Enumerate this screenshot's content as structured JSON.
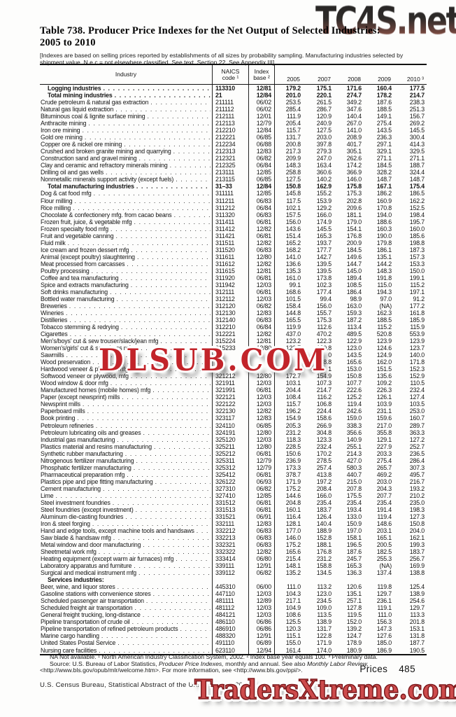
{
  "watermarks": {
    "top": "TC4S.net",
    "middle": "DLSUB.COM",
    "bottom": "TradersXtreme.com"
  },
  "title": {
    "line1": "Table 738. Producer Price Indexes for the Net Output of Selected Industries:",
    "line2": "2005 to 2010"
  },
  "note": "[Indexes are based on selling prices reported by establishments of all sizes by probability sampling. Manufacturing industries selected by shipment value. N.e.c.= not elsewhere classified. See text, Section 22. See Appendix III]",
  "table": {
    "header": {
      "industry": "Industry",
      "naics1": "NAICS",
      "naics2": "code ¹",
      "base1": "Index",
      "base2": "base ²",
      "years": [
        "2005",
        "2007",
        "2008",
        "2009",
        "2010 ³"
      ]
    },
    "rows": [
      {
        "n": "Logging industries",
        "c": "113310",
        "b": "12/81",
        "v": [
          "179.2",
          "175.1",
          "171.6",
          "160.4",
          "177.5"
        ],
        "s": "b"
      },
      {
        "n": "Total mining industries",
        "c": "21",
        "b": "12/84",
        "v": [
          "201.0",
          "220.1",
          "274.7",
          "178.2",
          "214.7"
        ],
        "s": "b"
      },
      {
        "n": "Crude petroleum & natural gas extraction",
        "c": "211111",
        "b": "06/02",
        "v": [
          "253.5",
          "261.5",
          "349.2",
          "187.6",
          "238.3"
        ]
      },
      {
        "n": "Natural gas liquid extraction",
        "c": "211112",
        "b": "06/02",
        "v": [
          "285.4",
          "286.7",
          "347.6",
          "188.5",
          "251.3"
        ]
      },
      {
        "n": "Bituminous coal & lignite surface mining",
        "c": "212111",
        "b": "12/01",
        "v": [
          "111.9",
          "120.9",
          "140.4",
          "149.1",
          "156.7"
        ]
      },
      {
        "n": "Anthracite mining",
        "c": "212113",
        "b": "12/79",
        "v": [
          "205.4",
          "240.9",
          "267.0",
          "275.4",
          "269.2"
        ]
      },
      {
        "n": "Iron ore mining",
        "c": "212210",
        "b": "12/84",
        "v": [
          "115.7",
          "127.5",
          "141.0",
          "143.5",
          "145.5"
        ]
      },
      {
        "n": "Gold ore mining",
        "c": "212221",
        "b": "06/85",
        "v": [
          "131.7",
          "203.0",
          "208.9",
          "236.3",
          "300.4"
        ]
      },
      {
        "n": "Copper ore & nickel ore mining",
        "c": "212234",
        "b": "06/88",
        "v": [
          "200.8",
          "397.8",
          "401.7",
          "297.1",
          "414.3"
        ]
      },
      {
        "n": "Crushed and broken granite mining and quarrying",
        "c": "212313",
        "b": "12/83",
        "v": [
          "217.3",
          "279.3",
          "305.1",
          "329.1",
          "329.5"
        ]
      },
      {
        "n": "Construction sand and gravel mining",
        "c": "212321",
        "b": "06/82",
        "v": [
          "209.9",
          "247.0",
          "262.6",
          "271.1",
          "271.1"
        ]
      },
      {
        "n": "Clay and ceramic and refractory minerals mining",
        "c": "212325",
        "b": "06/84",
        "v": [
          "148.3",
          "163.4",
          "174.2",
          "184.5",
          "188.7"
        ]
      },
      {
        "n": "Drilling oil and gas wells",
        "c": "213111",
        "b": "12/85",
        "v": [
          "258.8",
          "360.6",
          "366.9",
          "328.2",
          "324.4"
        ]
      },
      {
        "n": "Nonmetallic minerals support activity (except fuels)",
        "c": "213115",
        "b": "06/85",
        "v": [
          "127.5",
          "140.2",
          "146.0",
          "148.7",
          "148.7"
        ]
      },
      {
        "n": "Total manufacturing industries",
        "c": "31–33",
        "b": "12/84",
        "v": [
          "150.8",
          "162.9",
          "175.8",
          "167.1",
          "175.4"
        ],
        "s": "b"
      },
      {
        "n": "Dog & cat food mfg",
        "c": "311111",
        "b": "12/85",
        "v": [
          "145.8",
          "155.2",
          "175.3",
          "186.2",
          "186.5"
        ]
      },
      {
        "n": "Flour milling",
        "c": "311211",
        "b": "06/83",
        "v": [
          "117.5",
          "153.9",
          "202.8",
          "160.9",
          "162.2"
        ]
      },
      {
        "n": "Rice milling",
        "c": "311212",
        "b": "06/84",
        "v": [
          "102.1",
          "129.2",
          "209.6",
          "170.8",
          "152.5"
        ]
      },
      {
        "n": "Chocolate & confectionery mfg. from cacao beans",
        "c": "311320",
        "b": "06/83",
        "v": [
          "157.5",
          "166.0",
          "181.1",
          "194.0",
          "198.4"
        ]
      },
      {
        "n": "Frozen fruit, juice, & vegetable mfg",
        "c": "311411",
        "b": "06/81",
        "v": [
          "156.0",
          "174.9",
          "179.0",
          "188.6",
          "195.7"
        ]
      },
      {
        "n": "Frozen specialty food mfg",
        "c": "311412",
        "b": "12/82",
        "v": [
          "143.6",
          "145.5",
          "154.1",
          "160.3",
          "160.0"
        ]
      },
      {
        "n": "Fruit and vegetable canning",
        "c": "311421",
        "b": "06/81",
        "v": [
          "151.4",
          "165.3",
          "176.8",
          "190.0",
          "185.6"
        ]
      },
      {
        "n": "Fluid milk",
        "c": "311511",
        "b": "12/82",
        "v": [
          "165.2",
          "193.7",
          "200.9",
          "179.8",
          "198.8"
        ]
      },
      {
        "n": "Ice cream and frozen dessert mfg",
        "c": "311520",
        "b": "06/83",
        "v": [
          "168.2",
          "177.7",
          "184.5",
          "186.1",
          "187.3"
        ]
      },
      {
        "n": "Animal (except poultry) slaughtering",
        "c": "311611",
        "b": "12/80",
        "v": [
          "141.0",
          "142.7",
          "149.6",
          "135.1",
          "157.3"
        ]
      },
      {
        "n": "Meat processed from carcasses",
        "c": "311612",
        "b": "12/82",
        "v": [
          "136.6",
          "139.5",
          "144.7",
          "144.2",
          "153.3"
        ]
      },
      {
        "n": "Poultry processing",
        "c": "311615",
        "b": "12/81",
        "v": [
          "135.3",
          "139.5",
          "145.0",
          "148.3",
          "150.0"
        ]
      },
      {
        "n": "Coffee and tea manufacturing",
        "c": "311920",
        "b": "06/81",
        "v": [
          "161.0",
          "173.8",
          "189.4",
          "191.8",
          "199.1"
        ]
      },
      {
        "n": "Spice and extracts manufacturing",
        "c": "311942",
        "b": "12/03",
        "v": [
          "99.1",
          "102.3",
          "108.5",
          "115.0",
          "115.2"
        ]
      },
      {
        "n": "Soft drinks manufacturing",
        "c": "312111",
        "b": "06/81",
        "v": [
          "168.6",
          "177.4",
          "186.4",
          "194.3",
          "197.1"
        ]
      },
      {
        "n": "Bottled water manufacturing",
        "c": "312112",
        "b": "12/03",
        "v": [
          "101.5",
          "99.4",
          "98.9",
          "97.0",
          "91.2"
        ]
      },
      {
        "n": "Breweries",
        "c": "312120",
        "b": "06/82",
        "v": [
          "158.4",
          "156.0",
          "163.0",
          "(NA)",
          "177.2"
        ]
      },
      {
        "n": "Wineries",
        "c": "312130",
        "b": "12/83",
        "v": [
          "144.8",
          "155.7",
          "159.3",
          "162.3",
          "161.8"
        ]
      },
      {
        "n": "Distilleries",
        "c": "312140",
        "b": "06/83",
        "v": [
          "165.5",
          "175.3",
          "187.2",
          "188.5",
          "185.9"
        ]
      },
      {
        "n": "Tobacco stemming & redrying",
        "c": "312210",
        "b": "06/84",
        "v": [
          "119.9",
          "112.6",
          "113.4",
          "115.2",
          "115.9"
        ]
      },
      {
        "n": "Cigarettes",
        "c": "312221",
        "b": "12/82",
        "v": [
          "437.0",
          "470.2",
          "489.5",
          "520.8",
          "553.9"
        ]
      },
      {
        "n": "Men's/boys' cut & sew trouser/slack/jean mfg",
        "c": "315224",
        "b": "12/81",
        "v": [
          "123.2",
          "122.3",
          "122.9",
          "123.9",
          "123.9"
        ]
      },
      {
        "n": "Women's/girls' cut & sew dress mfg",
        "c": "315233",
        "b": "12/80",
        "v": [
          "123.7",
          "120.8",
          "123.0",
          "124.6",
          "123.7"
        ]
      },
      {
        "n": "Sawmills",
        "c": "",
        "b": "",
        "v": [
          "",
          "0",
          "143.5",
          "124.9",
          "140.0"
        ]
      },
      {
        "n": "Wood preservation",
        "c": "",
        "b": "",
        "v": [
          "",
          "8.8",
          "165.6",
          "162.0",
          "171.8"
        ]
      },
      {
        "n": "Hardwood veneer & plywood mfg",
        "c": "",
        "b": "",
        "v": [
          "",
          "1",
          "153.0",
          "151.5",
          "152.3"
        ]
      },
      {
        "n": "Softwood veneer or plywood, mfg",
        "c": "321212",
        "b": "12/80",
        "v": [
          "172.7",
          "154.9",
          "150.8",
          "135.6",
          "152.9"
        ]
      },
      {
        "n": "Wood window & door mfg",
        "c": "321911",
        "b": "12/03",
        "v": [
          "103.1",
          "107.3",
          "107.7",
          "109.2",
          "110.5"
        ]
      },
      {
        "n": "Manufactured homes (mobile homes) mfg",
        "c": "321991",
        "b": "06/81",
        "v": [
          "204.4",
          "214.7",
          "222.6",
          "226.3",
          "232.4"
        ]
      },
      {
        "n": "Paper (except newsprint) mills",
        "c": "322121",
        "b": "12/03",
        "v": [
          "108.4",
          "116.2",
          "125.2",
          "126.1",
          "127.4"
        ]
      },
      {
        "n": "Newsprint mills",
        "c": "322122",
        "b": "12/03",
        "v": [
          "115.7",
          "106.8",
          "119.4",
          "103.9",
          "103.5"
        ]
      },
      {
        "n": "Paperboard mills",
        "c": "322130",
        "b": "12/82",
        "v": [
          "196.2",
          "224.4",
          "242.6",
          "231.1",
          "253.0"
        ]
      },
      {
        "n": "Book printing",
        "c": "323117",
        "b": "12/83",
        "v": [
          "154.9",
          "158.6",
          "159.0",
          "159.6",
          "160.7"
        ]
      },
      {
        "n": "Petroleum refineries",
        "c": "324110",
        "b": "06/85",
        "v": [
          "205.3",
          "266.9",
          "338.3",
          "217.0",
          "289.7"
        ]
      },
      {
        "n": "Petroleum lubricating oils and greases",
        "c": "324191",
        "b": "12/80",
        "v": [
          "231.2",
          "304.8",
          "356.6",
          "355.8",
          "363.3"
        ]
      },
      {
        "n": "Industrial gas manufacturing",
        "c": "325120",
        "b": "12/03",
        "v": [
          "118.3",
          "123.3",
          "140.9",
          "129.1",
          "127.2"
        ]
      },
      {
        "n": "Plastics material and resins manufacturing",
        "c": "325211",
        "b": "12/80",
        "v": [
          "228.5",
          "232.4",
          "255.1",
          "227.9",
          "252.7"
        ]
      },
      {
        "n": "Synthetic rubber manufacturing",
        "c": "325212",
        "b": "06/81",
        "v": [
          "150.6",
          "170.2",
          "214.3",
          "203.3",
          "236.5"
        ]
      },
      {
        "n": "Nitrogenous fertilizer manufacturing",
        "c": "325311",
        "b": "12/79",
        "v": [
          "236.9",
          "278.5",
          "427.0",
          "275.4",
          "286.4"
        ]
      },
      {
        "n": "Phosphatic fertilizer manufacturing",
        "c": "325312",
        "b": "12/79",
        "v": [
          "173.3",
          "257.4",
          "580.3",
          "265.7",
          "307.3"
        ]
      },
      {
        "n": "Pharmaceutical preparation mfg",
        "c": "325412",
        "b": "06/81",
        "v": [
          "378.7",
          "413.8",
          "440.7",
          "469.2",
          "495.7"
        ]
      },
      {
        "n": "Plastics pipe and pipe fitting manufacturing",
        "c": "326122",
        "b": "06/93",
        "v": [
          "171.9",
          "197.2",
          "215.0",
          "203.0",
          "216.7"
        ]
      },
      {
        "n": "Cement manufacturing",
        "c": "327310",
        "b": "06/82",
        "v": [
          "175.2",
          "208.4",
          "207.8",
          "204.3",
          "193.2"
        ]
      },
      {
        "n": "Lime",
        "c": "327410",
        "b": "12/85",
        "v": [
          "144.6",
          "166.0",
          "175.5",
          "207.7",
          "210.2"
        ]
      },
      {
        "n": "Steel investment foundries",
        "c": "331512",
        "b": "06/81",
        "v": [
          "204.8",
          "235.4",
          "235.4",
          "235.4",
          "235.0"
        ]
      },
      {
        "n": "Steel foundries (except investment)",
        "c": "331513",
        "b": "06/81",
        "v": [
          "160.1",
          "183.7",
          "193.4",
          "191.4",
          "198.3"
        ]
      },
      {
        "n": "Aluminum die-casting foundries",
        "c": "331521",
        "b": "06/91",
        "v": [
          "116.4",
          "126.4",
          "133.0",
          "119.4",
          "127.3"
        ]
      },
      {
        "n": "Iron & steel forging",
        "c": "332111",
        "b": "12/83",
        "v": [
          "128.1",
          "140.4",
          "150.9",
          "148.6",
          "150.8"
        ]
      },
      {
        "n": "Hand and edge tools, except machine tools and handsaws",
        "c": "332212",
        "b": "06/83",
        "v": [
          "177.0",
          "188.9",
          "197.0",
          "203.1",
          "204.0"
        ]
      },
      {
        "n": "Saw blade & handsaw mfg",
        "c": "332213",
        "b": "06/83",
        "v": [
          "146.0",
          "152.8",
          "158.1",
          "165.1",
          "162.1"
        ]
      },
      {
        "n": "Metal window and door manufacturing",
        "c": "332321",
        "b": "06/83",
        "v": [
          "175.2",
          "188.1",
          "196.5",
          "200.5",
          "199.3"
        ]
      },
      {
        "n": "Sheetmetal work mfg",
        "c": "332322",
        "b": "12/82",
        "v": [
          "165.6",
          "176.8",
          "187.6",
          "182.5",
          "183.7"
        ]
      },
      {
        "n": "Heating equipment (except warm air furnaces) mfg",
        "c": "333414",
        "b": "06/80",
        "v": [
          "215.4",
          "231.2",
          "245.7",
          "255.3",
          "256.7"
        ]
      },
      {
        "n": "Laboratory apparatus and furniture",
        "c": "339111",
        "b": "12/91",
        "v": [
          "148.1",
          "158.8",
          "165.3",
          "(NA)",
          "169.9"
        ]
      },
      {
        "n": "Surgical and medical instrument mfg",
        "c": "339112",
        "b": "06/82",
        "v": [
          "135.2",
          "134.5",
          "136.3",
          "137.4",
          "138.8"
        ]
      },
      {
        "n": "Services industries:",
        "c": "",
        "b": "",
        "v": [
          "",
          "",
          "",
          "",
          ""
        ],
        "s": "h"
      },
      {
        "n": "Beer, wine, and liquor stores",
        "c": "445310",
        "b": "06/00",
        "v": [
          "111.0",
          "113.2",
          "120.6",
          "119.8",
          "125.4"
        ]
      },
      {
        "n": "Gasoline stations with convenience stores",
        "c": "447110",
        "b": "12/03",
        "v": [
          "104.3",
          "123.0",
          "135.1",
          "129.7",
          "138.9"
        ]
      },
      {
        "n": "Scheduled passenger air transportation",
        "c": "481111",
        "b": "12/89",
        "v": [
          "217.1",
          "234.5",
          "257.1",
          "236.1",
          "254.6"
        ]
      },
      {
        "n": "Scheduled freight air transportation",
        "c": "481112",
        "b": "12/03",
        "v": [
          "104.9",
          "109.0",
          "127.8",
          "119.1",
          "129.7"
        ]
      },
      {
        "n": "General freight trucking, long-distance",
        "c": "484121",
        "b": "12/03",
        "v": [
          "108.6",
          "113.5",
          "119.5",
          "111.0",
          "113.3"
        ]
      },
      {
        "n": "Pipeline transportation of crude oil",
        "c": "486110",
        "b": "06/86",
        "v": [
          "125.5",
          "138.9",
          "152.0",
          "156.3",
          "201.8"
        ]
      },
      {
        "n": "Pipeline transportation of refined petroleum products",
        "c": "486910",
        "b": "06/86",
        "v": [
          "120.3",
          "131.7",
          "139.2",
          "147.3",
          "153.1"
        ]
      },
      {
        "n": "Marine cargo handling",
        "c": "488320",
        "b": "12/91",
        "v": [
          "115.1",
          "122.8",
          "124.7",
          "127.6",
          "131.8"
        ]
      },
      {
        "n": "United States Postal Service",
        "c": "491110",
        "b": "06/89",
        "v": [
          "155.0",
          "171.9",
          "178.9",
          "185.0",
          "187.7"
        ]
      },
      {
        "n": "Nursing care facilities",
        "c": "623110",
        "b": "12/94",
        "v": [
          "161.4",
          "174.0",
          "180.9",
          "186.9",
          "190.5"
        ]
      }
    ]
  },
  "footnotes": {
    "line1": "NA Not available. ¹ North American Industry Classification System, 2002. ² Index base year equals 100. ³ Preliminary data.",
    "line2_pre": "Source: U.S. Bureau of Labor Statistics, ",
    "line2_it1": "Producer Price Indexes,",
    "line2_mid": " monthly and annual. See also ",
    "line2_it2": "Monthly Labor Review,",
    "line3": "<http://www.bls.gov/opub/mlr/welcome.htm>. For more information, see <http://www.bls.gov/ppi/>."
  },
  "footer": {
    "prices_label": "Prices",
    "page_number": "485",
    "census_line": "U.S. Census Bureau, Statistical Abstract of the United States: 2012"
  }
}
